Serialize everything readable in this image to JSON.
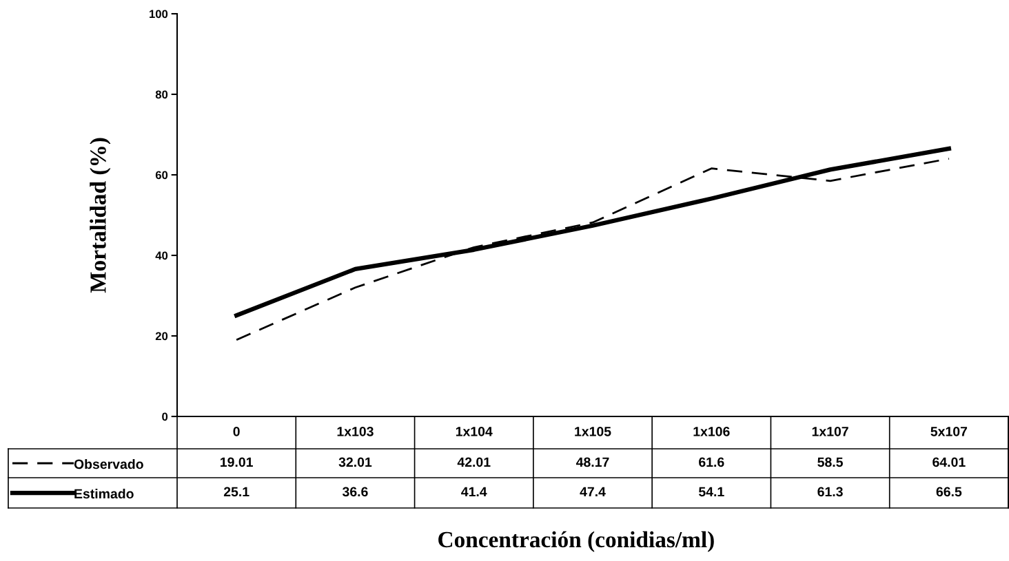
{
  "chart_data": {
    "type": "line",
    "xlabel": "Concentración (conidias/ml)",
    "ylabel": "Mortalidad (%)",
    "categories": [
      "0",
      "1x103",
      "1x104",
      "1x105",
      "1x106",
      "1x107",
      "5x107"
    ],
    "series": [
      {
        "name": "Observado",
        "color": "#000000",
        "line_style": "dashed",
        "values": [
          19.01,
          32.01,
          42.01,
          48.17,
          61.6,
          58.5,
          64.01
        ]
      },
      {
        "name": "Estimado",
        "color": "#000000",
        "line_style": "solid",
        "values": [
          25.1,
          36.6,
          41.4,
          47.4,
          54.1,
          61.3,
          66.5
        ]
      }
    ],
    "ylim": [
      0,
      100
    ],
    "yticks": [
      0,
      20,
      40,
      60,
      80,
      100
    ],
    "grid": false,
    "legend": "bottom",
    "marker": "none",
    "data_labels": true
  }
}
